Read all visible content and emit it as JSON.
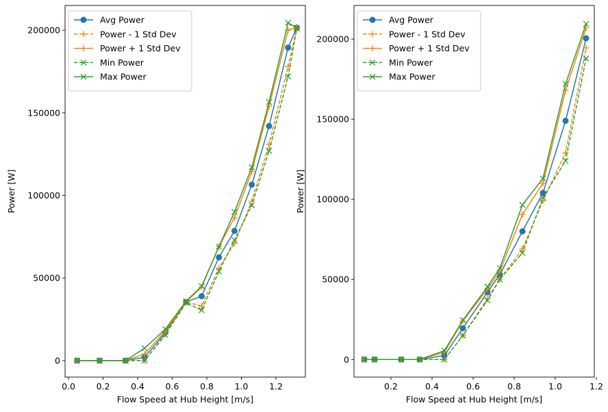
{
  "chart_data": [
    {
      "type": "line",
      "xlabel": "Flow Speed at Hub Height [m/s]",
      "ylabel": "Power [W]",
      "xlim": [
        -0.02,
        1.37
      ],
      "ylim": [
        -10000,
        215000
      ],
      "xticks": [
        0.0,
        0.2,
        0.4,
        0.6,
        0.8,
        1.0,
        1.2
      ],
      "xtick_labels": [
        "0.0",
        "0.2",
        "0.4",
        "0.6",
        "0.8",
        "1.0",
        "1.2"
      ],
      "yticks": [
        0,
        50000,
        100000,
        150000,
        200000
      ],
      "ytick_labels": [
        "0",
        "50000",
        "100000",
        "150000",
        "200000"
      ],
      "grid": false,
      "legend_position": "top-left",
      "x": [
        0.05,
        0.18,
        0.33,
        0.44,
        0.56,
        0.68,
        0.77,
        0.87,
        0.96,
        1.06,
        1.16,
        1.27,
        1.32
      ],
      "series": [
        {
          "name": "Avg Power",
          "color": "#1f77b4",
          "style": "solid",
          "marker": "circle",
          "values": [
            0,
            0,
            0,
            2000,
            17000,
            35500,
            39000,
            62500,
            78500,
            106500,
            142000,
            189500,
            201500
          ]
        },
        {
          "name": "Power - 1 Std Dev",
          "color": "#ff7f0e",
          "style": "dashed",
          "marker": "plus",
          "values": [
            0,
            0,
            0,
            0,
            16000,
            35500,
            33000,
            56000,
            71000,
            96500,
            131000,
            178000,
            201000
          ]
        },
        {
          "name": "Power + 1 Std Dev",
          "color": "#ff7f0e",
          "style": "solid",
          "marker": "plus",
          "values": [
            0,
            0,
            0,
            4000,
            18000,
            35500,
            44500,
            69000,
            86500,
            114500,
            154000,
            200000,
            202000
          ]
        },
        {
          "name": "Min Power",
          "color": "#2ca02c",
          "style": "dashed",
          "marker": "x",
          "values": [
            0,
            0,
            0,
            0,
            15500,
            35000,
            30500,
            54000,
            73000,
            94000,
            127000,
            172000,
            201000
          ]
        },
        {
          "name": "Max Power",
          "color": "#2ca02c",
          "style": "solid",
          "marker": "x",
          "values": [
            0,
            0,
            0,
            7500,
            19000,
            36000,
            45000,
            69000,
            90000,
            117000,
            156500,
            204500,
            201500
          ]
        }
      ]
    },
    {
      "type": "line",
      "xlabel": "Flow Speed at Hub Height [m/s]",
      "ylabel": "Power [W]",
      "xlim": [
        0.02,
        1.19
      ],
      "ylim": [
        -11000,
        221000
      ],
      "xticks": [
        0.2,
        0.4,
        0.6,
        0.8,
        1.0,
        1.2
      ],
      "xtick_labels": [
        "0.2",
        "0.4",
        "0.6",
        "0.8",
        "1.0",
        "1.2"
      ],
      "yticks": [
        0,
        50000,
        100000,
        150000,
        200000
      ],
      "ytick_labels": [
        "0",
        "50000",
        "100000",
        "150000",
        "200000"
      ],
      "grid": false,
      "legend_position": "top-left",
      "x": [
        0.07,
        0.12,
        0.25,
        0.34,
        0.46,
        0.55,
        0.67,
        0.73,
        0.84,
        0.94,
        1.05,
        1.15
      ],
      "series": [
        {
          "name": "Avg Power",
          "color": "#1f77b4",
          "style": "solid",
          "marker": "circle",
          "values": [
            0,
            0,
            0,
            0,
            2500,
            19500,
            42000,
            53000,
            80000,
            104000,
            149000,
            200500
          ]
        },
        {
          "name": "Power - 1 Std Dev",
          "color": "#ff7f0e",
          "style": "dashed",
          "marker": "plus",
          "values": [
            0,
            0,
            0,
            0,
            0,
            15000,
            38000,
            50000,
            69000,
            99000,
            129000,
            194500
          ]
        },
        {
          "name": "Power + 1 Std Dev",
          "color": "#ff7f0e",
          "style": "solid",
          "marker": "plus",
          "values": [
            0,
            0,
            0,
            0,
            4500,
            24000,
            44000,
            55000,
            90500,
            110000,
            168000,
            207000
          ]
        },
        {
          "name": "Min Power",
          "color": "#2ca02c",
          "style": "dashed",
          "marker": "x",
          "values": [
            0,
            0,
            0,
            0,
            0,
            15000,
            37000,
            50000,
            66500,
            101000,
            124000,
            188000
          ]
        },
        {
          "name": "Max Power",
          "color": "#2ca02c",
          "style": "solid",
          "marker": "x",
          "values": [
            0,
            0,
            0,
            0,
            5500,
            24500,
            45500,
            57000,
            96500,
            113000,
            172000,
            209500
          ]
        }
      ]
    }
  ]
}
